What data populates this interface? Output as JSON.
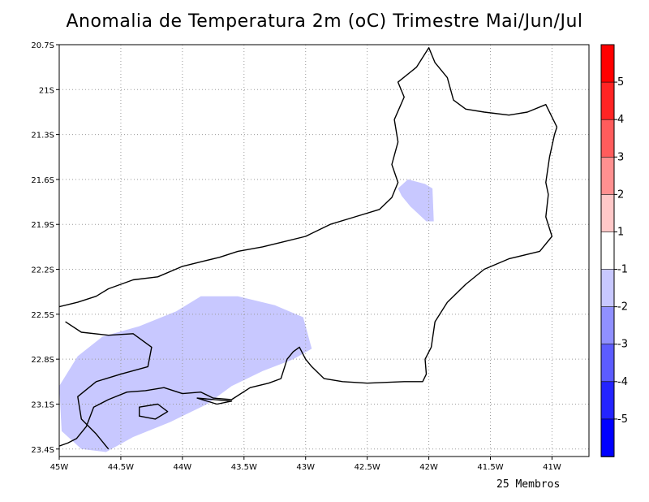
{
  "title": "Anomalia de Temperatura 2m (oC) Trimestre Mai/Jun/Jul",
  "footer": "25 Membros",
  "map": {
    "lon_range": [
      -45.0,
      -40.7
    ],
    "lat_range": [
      -23.45,
      -20.7
    ],
    "lon_ticks": [
      {
        "value": -45.0,
        "label": "45W"
      },
      {
        "value": -44.5,
        "label": "44.5W"
      },
      {
        "value": -44.0,
        "label": "44W"
      },
      {
        "value": -43.5,
        "label": "43.5W"
      },
      {
        "value": -43.0,
        "label": "43W"
      },
      {
        "value": -42.5,
        "label": "42.5W"
      },
      {
        "value": -42.0,
        "label": "42W"
      },
      {
        "value": -41.5,
        "label": "41.5W"
      },
      {
        "value": -41.0,
        "label": "41W"
      }
    ],
    "lat_ticks": [
      {
        "value": -20.7,
        "label": "20.7S"
      },
      {
        "value": -21.0,
        "label": "21S"
      },
      {
        "value": -21.3,
        "label": "21.3S"
      },
      {
        "value": -21.6,
        "label": "21.6S"
      },
      {
        "value": -21.9,
        "label": "21.9S"
      },
      {
        "value": -22.2,
        "label": "22.2S"
      },
      {
        "value": -22.5,
        "label": "22.5S"
      },
      {
        "value": -22.8,
        "label": "22.8S"
      },
      {
        "value": -23.1,
        "label": "23.1S"
      },
      {
        "value": -23.4,
        "label": "23.4S"
      }
    ],
    "grid": true
  },
  "colorbar": {
    "bins": [
      {
        "color": "#0000ff"
      },
      {
        "color": "#2424ff"
      },
      {
        "color": "#5c5cff"
      },
      {
        "color": "#9090ff"
      },
      {
        "color": "#c8c8ff"
      },
      {
        "color": "#ffffff"
      },
      {
        "color": "#ffc8c8"
      },
      {
        "color": "#ff9090"
      },
      {
        "color": "#ff5c5c"
      },
      {
        "color": "#ff2424"
      },
      {
        "color": "#ff0000"
      }
    ],
    "labels": [
      "-5",
      "-4",
      "-3",
      "-2",
      "-1",
      "1",
      "2",
      "3",
      "4",
      "5"
    ]
  },
  "anomaly_regions": [
    {
      "name": "southwest-negative-anomaly",
      "color": "#c8c8ff",
      "value_range": "-2 to -1",
      "points": [
        [
          -45.0,
          -22.98
        ],
        [
          -44.85,
          -22.78
        ],
        [
          -44.65,
          -22.65
        ],
        [
          -44.35,
          -22.58
        ],
        [
          -44.05,
          -22.48
        ],
        [
          -43.85,
          -22.38
        ],
        [
          -43.55,
          -22.38
        ],
        [
          -43.25,
          -22.44
        ],
        [
          -43.02,
          -22.52
        ],
        [
          -42.95,
          -22.73
        ],
        [
          -43.1,
          -22.8
        ],
        [
          -43.35,
          -22.88
        ],
        [
          -43.6,
          -22.98
        ],
        [
          -43.8,
          -23.1
        ],
        [
          -44.1,
          -23.22
        ],
        [
          -44.4,
          -23.32
        ],
        [
          -44.62,
          -23.42
        ],
        [
          -44.82,
          -23.4
        ],
        [
          -44.98,
          -23.28
        ]
      ]
    },
    {
      "name": "northeast-negative-anomaly",
      "color": "#c8c8ff",
      "value_range": "-2 to -1",
      "points": [
        [
          -42.25,
          -21.66
        ],
        [
          -42.17,
          -21.6
        ],
        [
          -42.03,
          -21.63
        ],
        [
          -41.97,
          -21.66
        ],
        [
          -41.96,
          -21.88
        ],
        [
          -42.02,
          -21.88
        ],
        [
          -42.15,
          -21.78
        ],
        [
          -42.22,
          -21.71
        ]
      ]
    }
  ],
  "coastline": [
    [
      -45.0,
      -23.38
    ],
    [
      -44.93,
      -23.36
    ],
    [
      -44.86,
      -23.33
    ],
    [
      -44.78,
      -23.25
    ],
    [
      -44.72,
      -23.12
    ],
    [
      -44.6,
      -23.07
    ],
    [
      -44.45,
      -23.02
    ],
    [
      -44.3,
      -23.01
    ],
    [
      -44.15,
      -22.99
    ],
    [
      -44.0,
      -23.03
    ],
    [
      -43.85,
      -23.02
    ],
    [
      -43.75,
      -23.06
    ],
    [
      -43.6,
      -23.07
    ],
    [
      -43.45,
      -22.99
    ],
    [
      -43.3,
      -22.96
    ],
    [
      -43.2,
      -22.93
    ],
    [
      -43.15,
      -22.8
    ],
    [
      -43.1,
      -22.75
    ],
    [
      -43.05,
      -22.72
    ],
    [
      -43.0,
      -22.8
    ],
    [
      -42.95,
      -22.85
    ],
    [
      -42.85,
      -22.93
    ],
    [
      -42.7,
      -22.95
    ],
    [
      -42.5,
      -22.96
    ],
    [
      -42.2,
      -22.95
    ],
    [
      -42.05,
      -22.95
    ],
    [
      -42.02,
      -22.9
    ],
    [
      -42.03,
      -22.8
    ],
    [
      -41.98,
      -22.72
    ],
    [
      -41.95,
      -22.55
    ],
    [
      -41.85,
      -22.42
    ],
    [
      -41.7,
      -22.3
    ],
    [
      -41.55,
      -22.2
    ],
    [
      -41.35,
      -22.13
    ],
    [
      -41.1,
      -22.08
    ],
    [
      -41.0,
      -21.98
    ],
    [
      -41.05,
      -21.85
    ],
    [
      -41.03,
      -21.7
    ],
    [
      -41.05,
      -21.62
    ],
    [
      -41.02,
      -21.45
    ],
    [
      -40.98,
      -21.3
    ],
    [
      -40.96,
      -21.25
    ]
  ],
  "state_border": [
    [
      -45.0,
      -22.45
    ],
    [
      -44.85,
      -22.42
    ],
    [
      -44.7,
      -22.38
    ],
    [
      -44.6,
      -22.33
    ],
    [
      -44.5,
      -22.3
    ],
    [
      -44.4,
      -22.27
    ],
    [
      -44.2,
      -22.25
    ],
    [
      -44.0,
      -22.18
    ],
    [
      -43.85,
      -22.15
    ],
    [
      -43.7,
      -22.12
    ],
    [
      -43.55,
      -22.08
    ],
    [
      -43.35,
      -22.05
    ],
    [
      -43.2,
      -22.02
    ],
    [
      -43.0,
      -21.98
    ],
    [
      -42.8,
      -21.9
    ],
    [
      -42.6,
      -21.85
    ],
    [
      -42.4,
      -21.8
    ],
    [
      -42.3,
      -21.72
    ],
    [
      -42.25,
      -21.62
    ],
    [
      -42.3,
      -21.5
    ],
    [
      -42.25,
      -21.35
    ],
    [
      -42.28,
      -21.2
    ],
    [
      -42.2,
      -21.05
    ],
    [
      -42.25,
      -20.95
    ],
    [
      -42.1,
      -20.85
    ],
    [
      -42.0,
      -20.72
    ],
    [
      -41.95,
      -20.82
    ],
    [
      -41.85,
      -20.92
    ],
    [
      -41.8,
      -21.07
    ],
    [
      -41.7,
      -21.13
    ],
    [
      -41.55,
      -21.15
    ],
    [
      -41.35,
      -21.17
    ],
    [
      -41.2,
      -21.15
    ],
    [
      -41.05,
      -21.1
    ],
    [
      -40.96,
      -21.25
    ]
  ],
  "west_border": [
    [
      -44.95,
      -22.55
    ],
    [
      -44.82,
      -22.62
    ],
    [
      -44.6,
      -22.64
    ],
    [
      -44.4,
      -22.63
    ],
    [
      -44.25,
      -22.72
    ],
    [
      -44.28,
      -22.85
    ],
    [
      -44.5,
      -22.9
    ],
    [
      -44.7,
      -22.95
    ],
    [
      -44.85,
      -23.05
    ],
    [
      -44.82,
      -23.2
    ],
    [
      -44.7,
      -23.3
    ],
    [
      -44.6,
      -23.4
    ]
  ],
  "islands": [
    [
      [
        -44.35,
        -23.12
      ],
      [
        -44.2,
        -23.1
      ],
      [
        -44.12,
        -23.15
      ],
      [
        -44.22,
        -23.2
      ],
      [
        -44.35,
        -23.18
      ]
    ],
    [
      [
        -43.88,
        -23.06
      ],
      [
        -43.6,
        -23.08
      ],
      [
        -43.72,
        -23.1
      ]
    ]
  ]
}
